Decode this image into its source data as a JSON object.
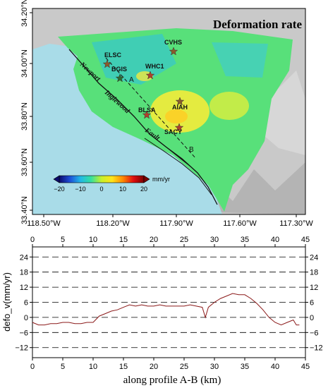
{
  "map": {
    "title": "Deformation rate",
    "lon_ticks": [
      "118.50°W",
      "118.20°W",
      "117.90°W",
      "117.60°W",
      "117.30°W"
    ],
    "lat_ticks": [
      "34.20°N",
      "34.00°N",
      "33.80°N",
      "33.60°N",
      "33.40°N"
    ],
    "stations": [
      {
        "name": "ELSC",
        "color": "#8b5a2b"
      },
      {
        "name": "BGIS",
        "color": "#2e6b2e"
      },
      {
        "name": "WHC1",
        "color": "#b0402c"
      },
      {
        "name": "CVHS",
        "color": "#8b5a2b"
      },
      {
        "name": "BLSA",
        "color": "#b0402c"
      },
      {
        "name": "AIAH",
        "color": "#8b5a2b"
      },
      {
        "name": "SACY",
        "color": "#b0402c"
      }
    ],
    "profile_labels": {
      "start": "A",
      "end": "B"
    },
    "faults": {
      "newport": "Newport",
      "inglewood": "Inglewood",
      "fault": "Fault"
    },
    "colorbar": {
      "ticks": [
        "−20",
        "−10",
        "0",
        "10",
        "20"
      ],
      "unit": "mm/yr",
      "colors": [
        "#0b0b6e",
        "#1d4ed8",
        "#22b8e6",
        "#34e0a0",
        "#c8f02a",
        "#ffe41a",
        "#ff8a00",
        "#e01010",
        "#7a0000"
      ]
    }
  },
  "chart_data": {
    "type": "line",
    "xlabel": "along  profile A-B (km)",
    "ylabel": "defo_v(mm/yr)",
    "xlim": [
      0,
      45
    ],
    "ylim": [
      -16,
      28
    ],
    "x_ticks": [
      0,
      5,
      10,
      15,
      20,
      25,
      30,
      35,
      40,
      45
    ],
    "y_ticks": [
      -12,
      -6,
      0,
      6,
      12,
      18,
      24
    ],
    "y_tick_labels": [
      "−12",
      "−6",
      "0",
      "6",
      "12",
      "18",
      "24"
    ],
    "grid": "dashed-horizontal",
    "line_color": "#8b1a1a",
    "series": [
      {
        "x": [
          0,
          1,
          2,
          3,
          4,
          5,
          6,
          7,
          8,
          9,
          10,
          11,
          12,
          13,
          14,
          15,
          16,
          17,
          18,
          19,
          20,
          21,
          22,
          23,
          24,
          25,
          26,
          27,
          28,
          28.5,
          29,
          30,
          31,
          32,
          33,
          34,
          35,
          36,
          37,
          38,
          39,
          40,
          41,
          42,
          43,
          43.5,
          44
        ],
        "values": [
          -2,
          -3,
          -3,
          -2.5,
          -2.5,
          -2,
          -2,
          -2.5,
          -2.5,
          -2,
          -2,
          0.5,
          1.5,
          2.5,
          3,
          4,
          5,
          4.5,
          5,
          4.5,
          4.5,
          5,
          4.5,
          4.5,
          4.5,
          4.5,
          5,
          4.5,
          4,
          0,
          4,
          6,
          7.5,
          8.5,
          9.5,
          9,
          9,
          7.5,
          5.5,
          3,
          0,
          -2,
          -3,
          -2,
          -1,
          -3,
          -3
        ]
      }
    ]
  }
}
